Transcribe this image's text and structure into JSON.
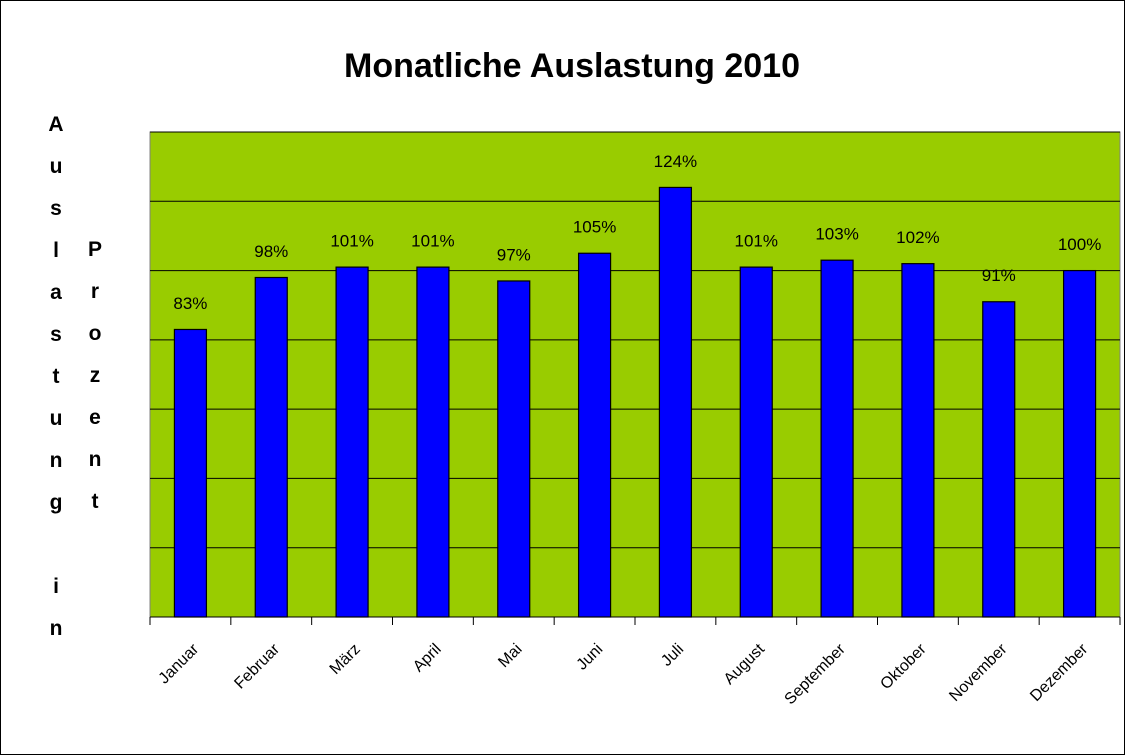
{
  "chart_data": {
    "type": "bar",
    "title": "Monatliche  Auslastung 2010",
    "y_label": [
      "Auslastung in",
      "Prozent"
    ],
    "categories": [
      "Januar",
      "Februar",
      "März",
      "April",
      "Mai",
      "Juni",
      "Juli",
      "August",
      "September",
      "Oktober",
      "November",
      "Dezember"
    ],
    "values": [
      83,
      98,
      101,
      101,
      97,
      105,
      124,
      101,
      103,
      102,
      91,
      100
    ],
    "value_labels": [
      "83%",
      "98%",
      "101%",
      "101%",
      "97%",
      "105%",
      "124%",
      "101%",
      "103%",
      "102%",
      "91%",
      "100%"
    ],
    "color": "#0000ff",
    "background": "#99cc00",
    "ylim": [
      0,
      140
    ],
    "yticks": [
      0,
      20,
      40,
      60,
      80,
      100,
      120,
      140
    ],
    "grid": true
  }
}
